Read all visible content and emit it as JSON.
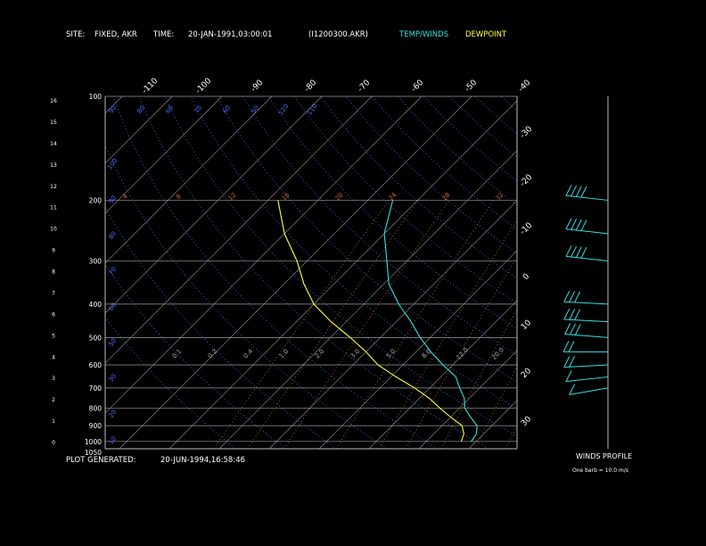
{
  "header": {
    "site_label": "SITE:",
    "site_value": "FIXED, AKR",
    "time_label": "TIME:",
    "time_value": "20-JAN-1991,03:00:01",
    "file_id": "(I1200300.AKR)",
    "legend_temp": "TEMP/WINDS",
    "legend_dew": "DEWPOINT"
  },
  "footer": {
    "generated_label": "PLOT GENERATED:",
    "generated_value": "20-JUN-1994,16:58:46"
  },
  "wind_panel": {
    "title": "WINDS PROFILE",
    "note": "One barb = 10.0 m/s"
  },
  "colors": {
    "temp": "#33e0e0",
    "dew": "#ffff40",
    "isotherm": "#9a9a9a",
    "isobar": "#9a9a9a",
    "dry_adiabat": "#4f6fff",
    "mixing_ratio": "#d06a3a",
    "label_white": "#ffffff",
    "wind": "#33e0e0"
  },
  "chart_data": {
    "type": "line",
    "subtype": "skew-t log-p",
    "pressure_ticks": [
      100,
      200,
      300,
      400,
      500,
      600,
      700,
      800,
      900,
      1000,
      1050
    ],
    "pressure_labels": [
      "100",
      "200",
      "300",
      "400",
      "500",
      "600",
      "700",
      "800",
      "900",
      "1000",
      "1050"
    ],
    "height_km_ticks": [
      "16",
      "15",
      "14",
      "13",
      "12",
      "11",
      "10",
      "9",
      "8",
      "7",
      "6",
      "5",
      "4",
      "3",
      "2",
      "1",
      "0"
    ],
    "top_isotherm_labels": [
      "-110",
      "-100",
      "-90",
      "-80",
      "-70",
      "-60",
      "-50",
      "-40"
    ],
    "right_isotherm_labels": [
      "-30",
      "-20",
      "-10",
      "0",
      "10",
      "20",
      "30"
    ],
    "mixing_ratio_labels": [
      "4",
      "8",
      "12",
      "16",
      "20",
      "24",
      "28",
      "32"
    ],
    "mixing_ratio_labels_lower": [
      "0.1",
      "0.2",
      "0.4",
      "1.0",
      "2.0",
      "3.0",
      "5.0",
      "8.0",
      "12.0",
      "20.0"
    ],
    "adiabat_labels": [
      "90",
      "80",
      "60",
      "70",
      "60",
      "50",
      "120",
      "110",
      "100",
      "90",
      "80",
      "70",
      "60",
      "50",
      "30",
      "20",
      "10"
    ],
    "temp_xlim": [
      -40,
      40
    ],
    "temperature_profile": [
      {
        "p": 1000,
        "t": 9
      },
      {
        "p": 950,
        "t": 8.5
      },
      {
        "p": 900,
        "t": 7
      },
      {
        "p": 850,
        "t": 4
      },
      {
        "p": 800,
        "t": 1
      },
      {
        "p": 750,
        "t": -1
      },
      {
        "p": 700,
        "t": -4
      },
      {
        "p": 650,
        "t": -7
      },
      {
        "p": 600,
        "t": -12
      },
      {
        "p": 550,
        "t": -17
      },
      {
        "p": 500,
        "t": -22
      },
      {
        "p": 450,
        "t": -27
      },
      {
        "p": 400,
        "t": -33
      },
      {
        "p": 350,
        "t": -39
      },
      {
        "p": 300,
        "t": -44
      },
      {
        "p": 250,
        "t": -50
      },
      {
        "p": 200,
        "t": -55
      }
    ],
    "dewpoint_profile": [
      {
        "p": 1000,
        "t": 7
      },
      {
        "p": 950,
        "t": 6
      },
      {
        "p": 900,
        "t": 4
      },
      {
        "p": 850,
        "t": 0
      },
      {
        "p": 800,
        "t": -4
      },
      {
        "p": 750,
        "t": -8
      },
      {
        "p": 700,
        "t": -13
      },
      {
        "p": 650,
        "t": -19
      },
      {
        "p": 600,
        "t": -25
      },
      {
        "p": 550,
        "t": -30
      },
      {
        "p": 500,
        "t": -36
      },
      {
        "p": 450,
        "t": -43
      },
      {
        "p": 400,
        "t": -50
      },
      {
        "p": 350,
        "t": -56
      },
      {
        "p": 300,
        "t": -62
      },
      {
        "p": 250,
        "t": -70
      },
      {
        "p": 200,
        "t": -78
      }
    ],
    "winds_profile_ms": [
      {
        "p": 200,
        "speed": 40,
        "dir": 290
      },
      {
        "p": 250,
        "speed": 40,
        "dir": 290
      },
      {
        "p": 300,
        "speed": 40,
        "dir": 290
      },
      {
        "p": 400,
        "speed": 30,
        "dir": 280
      },
      {
        "p": 450,
        "speed": 30,
        "dir": 280
      },
      {
        "p": 500,
        "speed": 30,
        "dir": 285
      },
      {
        "p": 550,
        "speed": 20,
        "dir": 270
      },
      {
        "p": 600,
        "speed": 20,
        "dir": 260
      },
      {
        "p": 650,
        "speed": 10,
        "dir": 250
      },
      {
        "p": 700,
        "speed": 10,
        "dir": 240
      }
    ]
  }
}
